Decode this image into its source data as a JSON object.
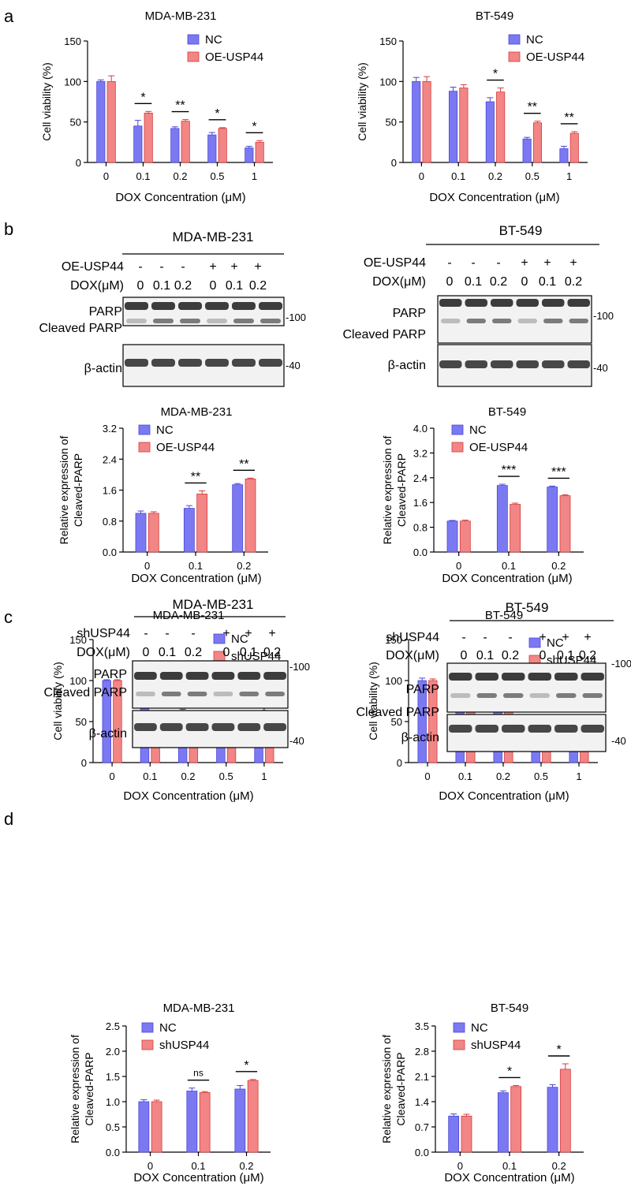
{
  "panel_letters": {
    "a": "a",
    "b": "b",
    "c": "c",
    "d": "d"
  },
  "colors": {
    "nc": "#7b79f2",
    "nc_edge": "#4a47d6",
    "treat": "#f28585",
    "treat_edge": "#d63c3c",
    "band": "#1c1c1c"
  },
  "blots": [
    {
      "id": "b-left",
      "cell": "MDA-MB-231",
      "row1_label": "OE-USP44",
      "row1": [
        "-",
        "-",
        "-",
        "+",
        "+",
        "+"
      ],
      "row2_label": "DOX(μM)",
      "row2": [
        "0",
        "0.1",
        "0.2",
        "0",
        "0.1",
        "0.2"
      ],
      "top_labels": [
        "PARP",
        "Cleaved PARP"
      ],
      "bottom_label": "β-actin",
      "mw_top": "100",
      "mw_bottom": "40"
    },
    {
      "id": "b-right",
      "cell": "BT-549",
      "row1_label": "OE-USP44",
      "row1": [
        "-",
        "-",
        "-",
        "+",
        "+",
        "+"
      ],
      "row2_label": "DOX(μM)",
      "row2": [
        "0",
        "0.1",
        "0.2",
        "0",
        "0.1",
        "0.2"
      ],
      "top_labels": [
        "PARP",
        "Cleaved PARP"
      ],
      "bottom_label": "β-actin",
      "mw_top": "100",
      "mw_bottom": "40"
    },
    {
      "id": "d-left",
      "cell": "MDA-MB-231",
      "row1_label": "shUSP44",
      "row1": [
        "-",
        "-",
        "-",
        "+",
        "+",
        "+"
      ],
      "row2_label": "DOX(μM)",
      "row2": [
        "0",
        "0.1",
        "0.2",
        "0",
        "0.1",
        "0.2"
      ],
      "top_labels": [
        "PARP",
        "Cleaved PARP"
      ],
      "bottom_label": "β-actin",
      "mw_top": "100",
      "mw_bottom": "40"
    },
    {
      "id": "d-right",
      "cell": "BT-549",
      "row1_label": "shUSP44",
      "row1": [
        "-",
        "-",
        "-",
        "+",
        "+",
        "+"
      ],
      "row2_label": "DOX(μM)",
      "row2": [
        "0",
        "0.1",
        "0.2",
        "0",
        "0.1",
        "0.2"
      ],
      "top_labels": [
        "PARP",
        "Cleaved PARP"
      ],
      "bottom_label": "β-actin",
      "mw_top": "100",
      "mw_bottom": "40"
    }
  ],
  "chart_data": [
    {
      "id": "a-left",
      "type": "bar",
      "title": "MDA-MB-231",
      "xlabel": "DOX Concentration (μM)",
      "ylabel": [
        "Cell viability (%)"
      ],
      "categories": [
        "0",
        "0.1",
        "0.2",
        "0.5",
        "1"
      ],
      "ylim": [
        0,
        150
      ],
      "yticks": [
        "0",
        "50",
        "100",
        "150"
      ],
      "series": [
        {
          "name": "NC",
          "values": [
            100,
            45,
            42,
            34,
            18
          ],
          "errors": [
            2,
            7,
            2,
            3,
            2
          ]
        },
        {
          "name": "OE-USP44",
          "values": [
            100,
            61,
            51,
            42,
            25
          ],
          "errors": [
            7,
            2,
            2,
            1,
            2
          ]
        }
      ],
      "significance": [
        "",
        "*",
        "**",
        "*",
        "*"
      ]
    },
    {
      "id": "a-right",
      "type": "bar",
      "title": "BT-549",
      "xlabel": "DOX Concentration (μM)",
      "ylabel": [
        "Cell viability (%)"
      ],
      "categories": [
        "0",
        "0.1",
        "0.2",
        "0.5",
        "1"
      ],
      "ylim": [
        0,
        150
      ],
      "yticks": [
        "0",
        "50",
        "100",
        "150"
      ],
      "series": [
        {
          "name": "NC",
          "values": [
            100,
            88,
            75,
            29,
            17
          ],
          "errors": [
            5,
            5,
            5,
            2,
            3
          ]
        },
        {
          "name": "OE-USP44",
          "values": [
            100,
            92,
            87,
            49,
            36
          ],
          "errors": [
            6,
            4,
            5,
            2,
            2
          ]
        }
      ],
      "significance": [
        "",
        "",
        "*",
        "**",
        "**"
      ]
    },
    {
      "id": "b-left-chart",
      "type": "bar",
      "title": "MDA-MB-231",
      "xlabel": "DOX Concentration (μM)",
      "ylabel": [
        "Relative expression of",
        "Cleaved-PARP"
      ],
      "categories": [
        "0",
        "0.1",
        "0.2"
      ],
      "ylim": [
        0,
        3.2
      ],
      "yticks": [
        "0.0",
        "0.8",
        "1.6",
        "2.4",
        "3.2"
      ],
      "series": [
        {
          "name": "NC",
          "values": [
            1.0,
            1.13,
            1.74
          ],
          "errors": [
            0.06,
            0.07,
            0.03
          ]
        },
        {
          "name": "OE-USP44",
          "values": [
            1.0,
            1.5,
            1.89
          ],
          "errors": [
            0.04,
            0.08,
            0.02
          ]
        }
      ],
      "significance": [
        "",
        "**",
        "**"
      ]
    },
    {
      "id": "b-right-chart",
      "type": "bar",
      "title": "BT-549",
      "xlabel": "DOX Concentration (μM)",
      "ylabel": [
        "Relative expression of",
        "Cleaved-PARP"
      ],
      "categories": [
        "0",
        "0.1",
        "0.2"
      ],
      "ylim": [
        0,
        4.0
      ],
      "yticks": [
        "0.0",
        "0.8",
        "1.6",
        "2.4",
        "3.2",
        "4.0"
      ],
      "series": [
        {
          "name": "NC",
          "values": [
            1.0,
            2.15,
            2.1
          ],
          "errors": [
            0.02,
            0.04,
            0.03
          ]
        },
        {
          "name": "OE-USP44",
          "values": [
            1.0,
            1.54,
            1.82
          ],
          "errors": [
            0.03,
            0.04,
            0.03
          ]
        }
      ],
      "significance": [
        "",
        "***",
        "***"
      ]
    },
    {
      "id": "c-left",
      "type": "bar",
      "title": "MDA-MB-231",
      "xlabel": "DOX Concentration (μM)",
      "ylabel": [
        "Cell viability (%)"
      ],
      "categories": [
        "0",
        "0.1",
        "0.2",
        "0.5",
        "1"
      ],
      "ylim": [
        0,
        150
      ],
      "yticks": [
        "0",
        "50",
        "100",
        "150"
      ],
      "series": [
        {
          "name": "NC",
          "values": [
            100,
            67,
            58,
            47,
            41
          ],
          "errors": [
            1,
            8,
            7,
            3,
            2
          ]
        },
        {
          "name": "shUSP44",
          "values": [
            100,
            57,
            46,
            36,
            25
          ],
          "errors": [
            1,
            2,
            1,
            1,
            4
          ]
        }
      ],
      "significance": [
        "",
        "",
        "",
        "*",
        "*"
      ]
    },
    {
      "id": "c-right",
      "type": "bar",
      "title": "BT-549",
      "xlabel": "DOX Concentration (μM)",
      "ylabel": [
        "Cell viability (%)"
      ],
      "categories": [
        "0",
        "0.1",
        "0.2",
        "0.5",
        "1"
      ],
      "ylim": [
        0,
        150
      ],
      "yticks": [
        "0",
        "50",
        "100",
        "150"
      ],
      "series": [
        {
          "name": "NC",
          "values": [
            100,
            88,
            74,
            43,
            31
          ],
          "errors": [
            3,
            3,
            2,
            4,
            2
          ]
        },
        {
          "name": "shUSP44",
          "values": [
            100,
            76,
            64,
            31,
            25
          ],
          "errors": [
            2,
            3,
            2,
            1,
            1
          ]
        }
      ],
      "significance": [
        "",
        "***",
        "***",
        "***",
        "***"
      ]
    },
    {
      "id": "d-left-chart",
      "type": "bar",
      "title": "MDA-MB-231",
      "xlabel": "DOX Concentration (μM)",
      "ylabel": [
        "Relative expression of",
        "Cleaved-PARP"
      ],
      "categories": [
        "0",
        "0.1",
        "0.2"
      ],
      "ylim": [
        0,
        2.5
      ],
      "yticks": [
        "0.0",
        "0.5",
        "1.0",
        "1.5",
        "2.0",
        "2.5"
      ],
      "series": [
        {
          "name": "NC",
          "values": [
            1.0,
            1.21,
            1.25
          ],
          "errors": [
            0.04,
            0.06,
            0.07
          ]
        },
        {
          "name": "shUSP44",
          "values": [
            1.0,
            1.18,
            1.42
          ],
          "errors": [
            0.03,
            0.02,
            0.02
          ]
        }
      ],
      "significance": [
        "",
        "ns",
        "*"
      ]
    },
    {
      "id": "d-right-chart",
      "type": "bar",
      "title": "BT-549",
      "xlabel": "DOX Concentration (μM)",
      "ylabel": [
        "Relative expression of",
        "Cleaved-PARP"
      ],
      "categories": [
        "0",
        "0.1",
        "0.2"
      ],
      "ylim": [
        0,
        3.5
      ],
      "yticks": [
        "0.0",
        "0.7",
        "1.4",
        "2.1",
        "2.8",
        "3.5"
      ],
      "series": [
        {
          "name": "NC",
          "values": [
            1.0,
            1.65,
            1.8
          ],
          "errors": [
            0.06,
            0.05,
            0.07
          ]
        },
        {
          "name": "shUSP44",
          "values": [
            1.0,
            1.82,
            2.3
          ],
          "errors": [
            0.05,
            0.03,
            0.15
          ]
        }
      ],
      "significance": [
        "",
        "*",
        "*"
      ]
    }
  ]
}
